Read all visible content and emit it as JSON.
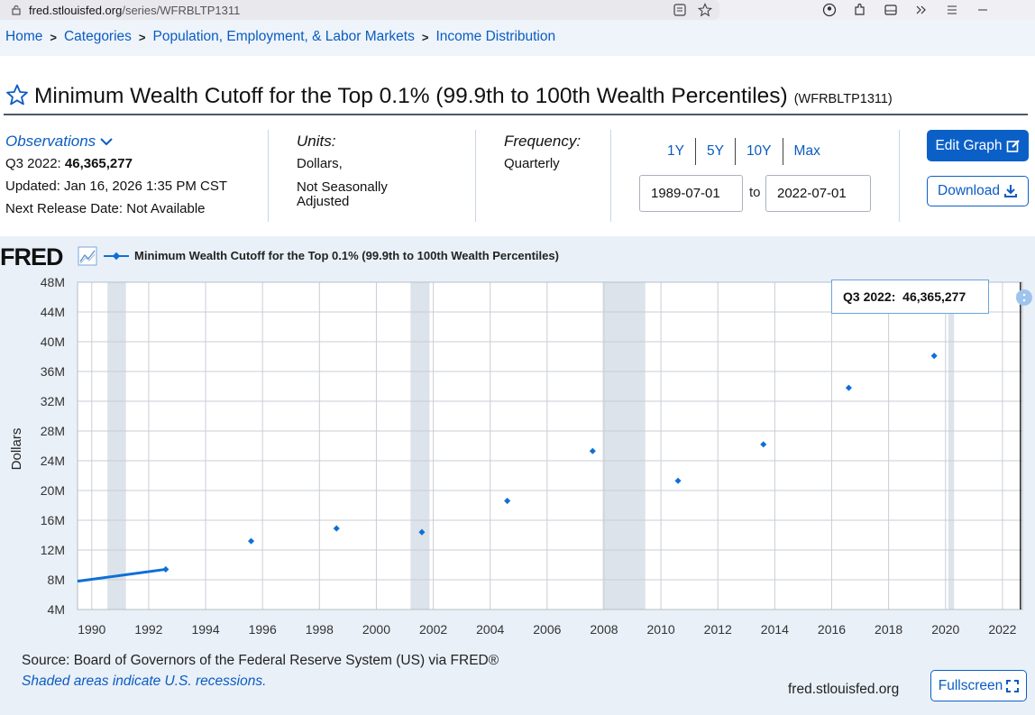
{
  "browser": {
    "url_host": "fred.stlouisfed.org",
    "url_path": "/series/WFRBLTP1311"
  },
  "breadcrumb": {
    "items": [
      "Home",
      "Categories",
      "Population, Employment, & Labor Markets",
      "Income Distribution"
    ],
    "separator": ">"
  },
  "header": {
    "title": "Minimum Wealth Cutoff for the Top 0.1% (99.9th to 100th Wealth Percentiles)",
    "series_id": "(WFRBLTP1311)"
  },
  "meta": {
    "observations_label": "Observations",
    "obs_period": "Q3 2022:",
    "obs_value": "46,365,277",
    "updated": "Updated: Jan 16, 2026 1:35 PM CST",
    "next_release": "Next Release Date: Not Available",
    "units_label": "Units:",
    "units_1": "Dollars,",
    "units_2a": "Not Seasonally",
    "units_2b": "Adjusted",
    "frequency_label": "Frequency:",
    "frequency": "Quarterly"
  },
  "controls": {
    "range_buttons": [
      "1Y",
      "5Y",
      "10Y",
      "Max"
    ],
    "start_date": "1989-07-01",
    "to_label": "to",
    "end_date": "2022-07-01",
    "edit_label": "Edit Graph",
    "download_label": "Download",
    "fullscreen_label": "Fullscreen"
  },
  "chart_footer": {
    "logo": "FRED",
    "source": "Source: Board of Governors of the Federal Reserve System (US) via FRED®",
    "shaded_note": "Shaded areas indicate U.S. recessions.",
    "site": "fred.stlouisfed.org"
  },
  "tooltip": {
    "period": "Q3 2022:",
    "value": "46,365,277"
  },
  "colors": {
    "series": "#0f6fd6",
    "link": "#0b5cc2",
    "recession": "#dde3ea"
  },
  "chart_data": {
    "type": "line",
    "title": "",
    "ylabel": "Dollars",
    "xlabel": "",
    "legend": "Minimum Wealth Cutoff for the Top 0.1% (99.9th to 100th Wealth Percentiles)",
    "xlim": [
      1989.5,
      2022.7
    ],
    "ylim": [
      4000000,
      48000000
    ],
    "x_ticks": [
      "1990",
      "1992",
      "1994",
      "1996",
      "1998",
      "2000",
      "2002",
      "2004",
      "2006",
      "2008",
      "2010",
      "2012",
      "2014",
      "2016",
      "2018",
      "2020",
      "2022"
    ],
    "y_ticks": [
      "4M",
      "8M",
      "12M",
      "16M",
      "20M",
      "24M",
      "28M",
      "32M",
      "36M",
      "40M",
      "44M",
      "48M"
    ],
    "recessions": [
      [
        1990.55,
        1991.2
      ],
      [
        2001.2,
        2001.87
      ],
      [
        2007.95,
        2009.45
      ],
      [
        2020.1,
        2020.3
      ]
    ],
    "series": [
      {
        "name": "Minimum Wealth Cutoff for the Top 0.1% (99.9th to 100th Wealth Percentiles)",
        "points": [
          [
            1989.5,
            7800000
          ],
          [
            1992.6,
            9400000
          ],
          [
            1995.6,
            13200000
          ],
          [
            1998.6,
            14900000
          ],
          [
            2001.6,
            14400000
          ],
          [
            2004.6,
            18600000
          ],
          [
            2007.6,
            25300000
          ],
          [
            2010.6,
            21300000
          ],
          [
            2013.6,
            26200000
          ],
          [
            2016.6,
            33800000
          ],
          [
            2019.6,
            38100000
          ],
          [
            2022.6,
            46365277
          ]
        ]
      }
    ],
    "grid": true
  }
}
